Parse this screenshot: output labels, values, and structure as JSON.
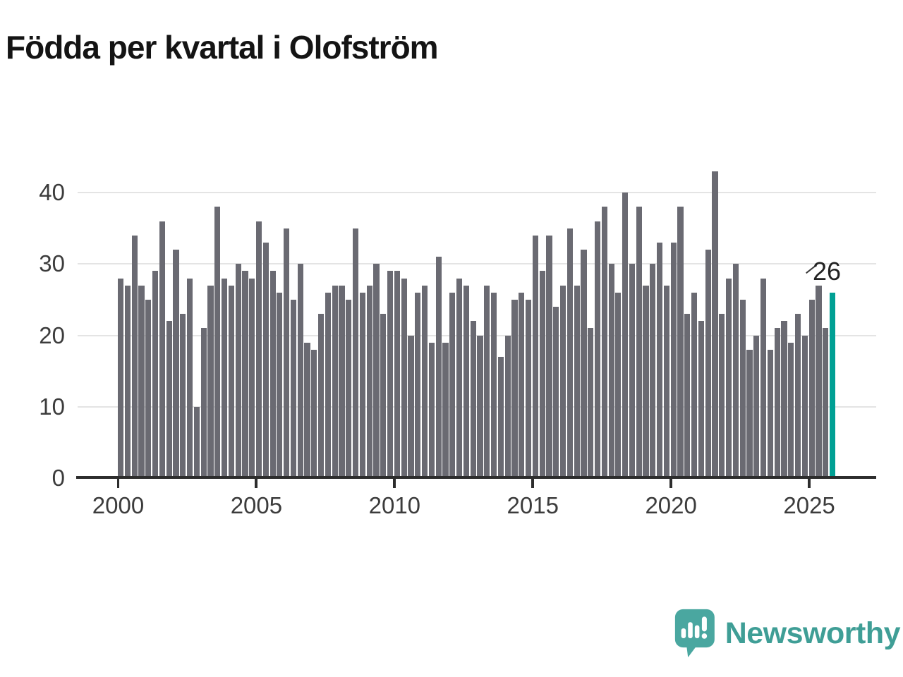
{
  "title": "Födda per kvartal i Olofström",
  "annotation": {
    "label": "26"
  },
  "logo": {
    "text": "Newsworthy"
  },
  "colors": {
    "bar": "#6a6a72",
    "highlight": "#00a094",
    "logo_teal": "#4aa7a0",
    "logo_text": "#3f9e96",
    "axis": "#2d2d2d",
    "gridline": "#e4e4e4",
    "label_text": "#3c3c3c"
  },
  "chart_data": {
    "type": "bar",
    "title": "Födda per kvartal i Olofström",
    "xlabel": "",
    "ylabel": "",
    "x_start": "2000-Q1",
    "x_end": "2025-Q4",
    "x_tick_labels": [
      "2000",
      "2005",
      "2010",
      "2015",
      "2020",
      "2025"
    ],
    "y_ticks": [
      0,
      10,
      20,
      30,
      40
    ],
    "ylim": [
      0,
      45
    ],
    "grid": true,
    "legend": false,
    "highlight_last_bar": true,
    "highlight_label": "26",
    "series": [
      {
        "name": "Födda per kvartal",
        "values": [
          28,
          27,
          34,
          27,
          25,
          29,
          36,
          22,
          32,
          23,
          28,
          10,
          21,
          27,
          38,
          28,
          27,
          30,
          29,
          28,
          36,
          33,
          29,
          26,
          35,
          25,
          30,
          19,
          18,
          23,
          26,
          27,
          27,
          25,
          35,
          26,
          27,
          30,
          23,
          29,
          29,
          28,
          20,
          26,
          27,
          19,
          31,
          19,
          26,
          28,
          27,
          22,
          20,
          27,
          26,
          17,
          20,
          25,
          26,
          25,
          34,
          29,
          34,
          24,
          27,
          35,
          27,
          32,
          21,
          36,
          38,
          30,
          26,
          40,
          30,
          38,
          27,
          30,
          33,
          27,
          33,
          38,
          23,
          26,
          22,
          32,
          43,
          23,
          28,
          30,
          25,
          18,
          20,
          28,
          18,
          21,
          22,
          19,
          23,
          20,
          25,
          27,
          21,
          26
        ]
      }
    ]
  }
}
